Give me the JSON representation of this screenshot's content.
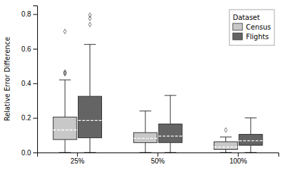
{
  "chart_data": {
    "type": "box",
    "ylabel": "Relative Error Difference",
    "categories": [
      "25%",
      "50%",
      "100%"
    ],
    "ylim": [
      0.0,
      0.85
    ],
    "yticks": [
      {
        "value": 0.0,
        "label": "0.0"
      },
      0.2,
      0.4,
      0.6,
      0.8
    ],
    "grid": false,
    "legend": "upper-right",
    "legend_title": "Dataset",
    "series": [
      {
        "name": "Census",
        "color": "#c8c8c8",
        "boxes": [
          {
            "whislo": 0.0,
            "q1": 0.075,
            "med": 0.13,
            "q3": 0.205,
            "whishi": 0.42,
            "fliers": [
              0.455,
              0.46,
              0.465,
              0.7
            ]
          },
          {
            "whislo": 0.0,
            "q1": 0.057,
            "med": 0.082,
            "q3": 0.115,
            "whishi": 0.24,
            "fliers": []
          },
          {
            "whislo": 0.0,
            "q1": 0.018,
            "med": 0.032,
            "q3": 0.062,
            "whishi": 0.09,
            "fliers": [
              0.13
            ]
          }
        ]
      },
      {
        "name": "Flights",
        "color": "#646464",
        "boxes": [
          {
            "whislo": 0.0,
            "q1": 0.085,
            "med": 0.185,
            "q3": 0.325,
            "whishi": 0.625,
            "fliers": [
              0.74,
              0.775,
              0.795
            ]
          },
          {
            "whislo": 0.0,
            "q1": 0.057,
            "med": 0.095,
            "q3": 0.165,
            "whishi": 0.33,
            "fliers": []
          },
          {
            "whislo": 0.0,
            "q1": 0.042,
            "med": 0.068,
            "q3": 0.105,
            "whishi": 0.2,
            "fliers": []
          }
        ]
      }
    ]
  }
}
